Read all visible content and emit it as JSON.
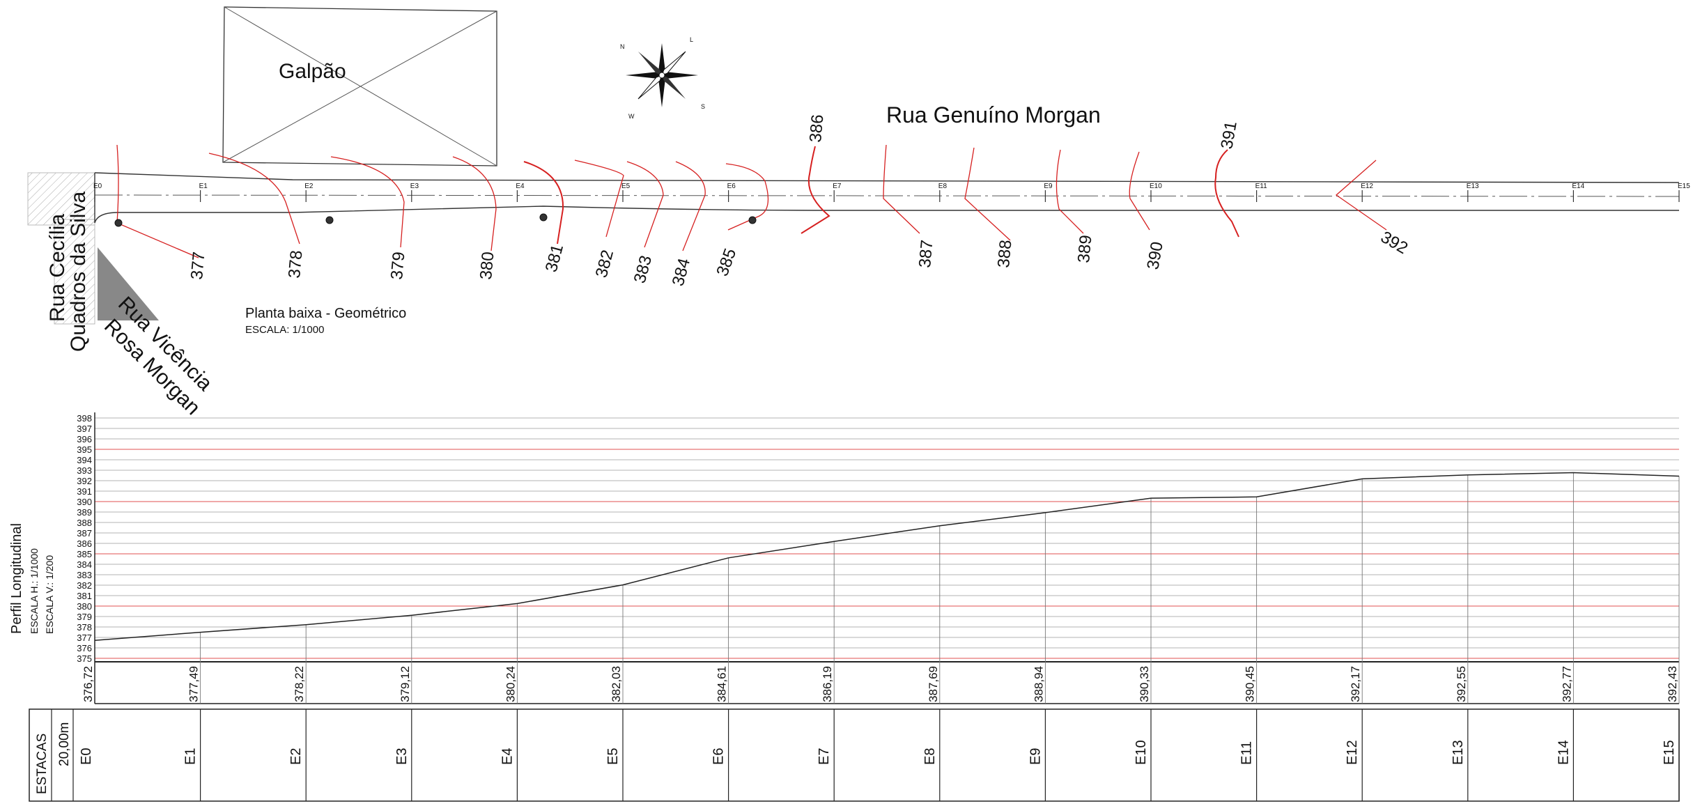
{
  "plan": {
    "building_label": "Galpão",
    "main_street": "Rua Genuíno Morgan",
    "side_street_1": [
      "Rua Cecília",
      "Quadros da Silva"
    ],
    "side_street_2": [
      "Rua Vicência",
      "Rosa Morgan"
    ],
    "title": "Planta baixa - Geométrico",
    "scale": "ESCALA: 1/1000",
    "compass_letters": [
      "N",
      "L",
      "S",
      "W"
    ],
    "stations": [
      "E0",
      "E1",
      "E2",
      "E3",
      "E4",
      "E5",
      "E6",
      "E7",
      "E8",
      "E9",
      "E10",
      "E11",
      "E12",
      "E13",
      "E14",
      "E15"
    ],
    "contour_labels": [
      "377",
      "378",
      "379",
      "380",
      "381",
      "382",
      "383",
      "384",
      "385",
      "386",
      "387",
      "388",
      "389",
      "390",
      "391",
      "392"
    ]
  },
  "profile": {
    "title": "Perfil Longitudinal",
    "scale_h": "ESCALA H.: 1/1000",
    "scale_v": "ESCALA V.: 1/200",
    "y_ticks": [
      "398",
      "397",
      "396",
      "395",
      "394",
      "393",
      "392",
      "391",
      "390",
      "389",
      "388",
      "387",
      "386",
      "385",
      "384",
      "383",
      "382",
      "381",
      "380",
      "379",
      "378",
      "377",
      "376",
      "375"
    ],
    "elevations": [
      "376,72",
      "377,49",
      "378,22",
      "379,12",
      "380,24",
      "382,03",
      "384,61",
      "386,19",
      "387,69",
      "388,94",
      "390,33",
      "390,45",
      "392,17",
      "392,55",
      "392,77",
      "392,43"
    ],
    "elevation_values": [
      376.72,
      377.49,
      378.22,
      379.12,
      380.24,
      382.03,
      384.61,
      386.19,
      387.69,
      388.94,
      390.33,
      390.45,
      392.17,
      392.55,
      392.77,
      392.43
    ],
    "ylim": [
      375,
      398
    ]
  },
  "table": {
    "header": "ESTACAS",
    "spacing": "20,00m"
  },
  "colors": {
    "line": "#222222",
    "contour": "#d62020",
    "grid": "#9a9a9a",
    "grid_major": "#e05050"
  }
}
